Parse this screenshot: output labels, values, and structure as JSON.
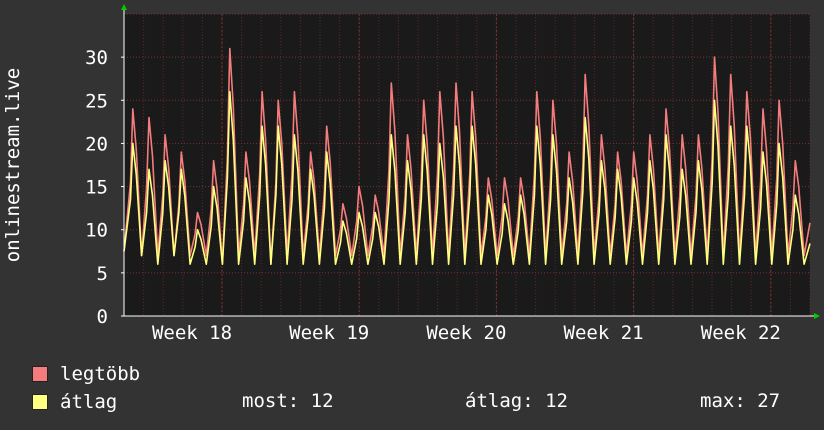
{
  "chart_data": {
    "type": "area",
    "ylabel": "onlinestream.live",
    "ylim": [
      0,
      35
    ],
    "yticks": [
      0,
      5,
      10,
      15,
      20,
      25,
      30
    ],
    "xtick_labels": [
      "Week 18",
      "Week 19",
      "Week 20",
      "Week 21",
      "Week 22"
    ],
    "xtick_positions_days": [
      5,
      12,
      19,
      26,
      33
    ],
    "xlim_days": [
      0,
      35
    ],
    "grid": true,
    "colors": {
      "background": "#333333",
      "plot": "#1a1a1a",
      "grid": "#5a2a2a",
      "axis": "#ffffff",
      "arrow": "#00cc00"
    },
    "series": [
      {
        "name": "legtöbb",
        "color": "#f47c7c",
        "peaks": [
          24,
          23,
          21,
          19,
          12,
          18,
          31,
          19,
          26,
          25,
          26,
          19,
          22,
          13,
          15,
          14,
          27,
          21,
          25,
          26,
          27,
          26,
          16,
          16,
          16,
          26,
          25,
          19,
          28,
          21,
          19,
          19,
          21,
          24,
          21,
          21,
          30,
          28,
          26,
          24,
          25,
          18
        ],
        "troughs": [
          7,
          7,
          7,
          7,
          7,
          6,
          7,
          7,
          6,
          7,
          7,
          7,
          7,
          7,
          7,
          7,
          7,
          7,
          7,
          7,
          7,
          7,
          7,
          7,
          7,
          7,
          7,
          7,
          7,
          7,
          7,
          7,
          7,
          7,
          7,
          7,
          7,
          7,
          7,
          7,
          7
        ]
      },
      {
        "name": "átlag",
        "color": "#ffff80",
        "peaks": [
          20,
          17,
          18,
          17,
          10,
          15,
          26,
          16,
          22,
          22,
          21,
          17,
          19,
          11,
          12,
          12,
          21,
          18,
          21,
          20,
          22,
          22,
          14,
          13,
          14,
          22,
          21,
          16,
          23,
          18,
          17,
          16,
          18,
          21,
          17,
          18,
          25,
          22,
          22,
          19,
          20,
          14
        ],
        "troughs": [
          7,
          6,
          7,
          6,
          6,
          6,
          6,
          6,
          6,
          6,
          6,
          6,
          6,
          6,
          6,
          6,
          6,
          6,
          6,
          6,
          6,
          6,
          6,
          6,
          6,
          6,
          6,
          6,
          6,
          6,
          6,
          6,
          6,
          6,
          6,
          6,
          6,
          6,
          6,
          6,
          6
        ]
      }
    ],
    "legend_position": "bottom-left"
  },
  "legend": {
    "items": [
      {
        "label": "legtöbb",
        "color": "#f47c7c"
      },
      {
        "label": "átlag",
        "color": "#ffff80"
      }
    ]
  },
  "stats": {
    "now": "most: 12",
    "avg": "átlag: 12",
    "max": "max: 27"
  }
}
